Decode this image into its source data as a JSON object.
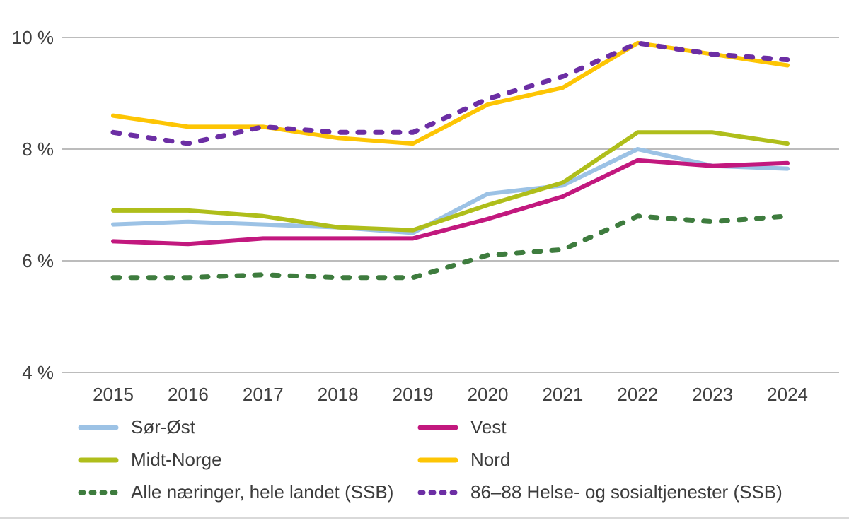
{
  "chart_data": {
    "type": "line",
    "title": "",
    "xlabel": "",
    "ylabel": "",
    "grid": true,
    "legend_position": "bottom",
    "categories": [
      "2015",
      "2016",
      "2017",
      "2018",
      "2019",
      "2020",
      "2021",
      "2022",
      "2023",
      "2024"
    ],
    "y_axis": {
      "min": 4,
      "max": 10.6,
      "unit": "%",
      "ticks": [
        {
          "label": "10 %",
          "value": 10
        },
        {
          "label": "8 %",
          "value": 8
        },
        {
          "label": "6 %",
          "value": 6
        },
        {
          "label": "4 %",
          "value": 4
        }
      ]
    },
    "series": [
      {
        "name": "Sør-Øst",
        "color": "#9CC2E5",
        "dashed": false,
        "values": [
          6.65,
          6.7,
          6.65,
          6.6,
          6.5,
          7.2,
          7.35,
          8.0,
          7.7,
          7.65
        ]
      },
      {
        "name": "Vest",
        "color": "#C2187E",
        "dashed": false,
        "values": [
          6.35,
          6.3,
          6.4,
          6.4,
          6.4,
          6.75,
          7.15,
          7.8,
          7.7,
          7.75
        ]
      },
      {
        "name": "Midt-Norge",
        "color": "#AFBE1B",
        "dashed": false,
        "values": [
          6.9,
          6.9,
          6.8,
          6.6,
          6.55,
          7.0,
          7.4,
          8.3,
          8.3,
          8.1
        ]
      },
      {
        "name": "Nord",
        "color": "#FDC504",
        "dashed": false,
        "values": [
          8.6,
          8.4,
          8.4,
          8.2,
          8.1,
          8.8,
          9.1,
          9.9,
          9.7,
          9.5
        ]
      },
      {
        "name": "Alle næringer, hele landet (SSB)",
        "color": "#3E7C3E",
        "dashed": true,
        "values": [
          5.7,
          5.7,
          5.75,
          5.7,
          5.7,
          6.1,
          6.2,
          6.8,
          6.7,
          6.8
        ]
      },
      {
        "name": "86–88 Helse- og sosialtjenester (SSB)",
        "color": "#6C2EA4",
        "dashed": true,
        "values": [
          8.3,
          8.1,
          8.4,
          8.3,
          8.3,
          8.9,
          9.3,
          9.9,
          9.7,
          9.6
        ]
      }
    ],
    "colors": {
      "gridline": "#A6A6A6",
      "axis_text": "#404040",
      "bottom_border": "#D9D9D9"
    }
  }
}
